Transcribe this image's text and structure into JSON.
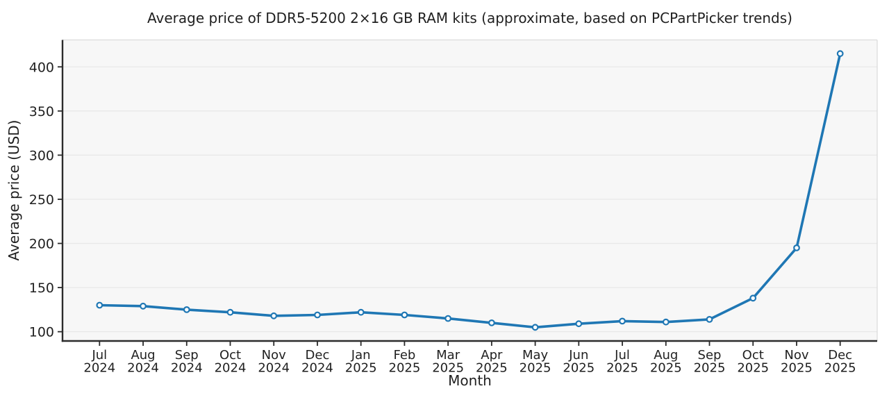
{
  "chart_data": {
    "type": "line",
    "title": "Average price of DDR5-5200 2×16 GB RAM kits (approximate, based on PCPartPicker trends)",
    "xlabel": "Month",
    "ylabel": "Average price (USD)",
    "categories": [
      "Jul 2024",
      "Aug 2024",
      "Sep 2024",
      "Oct 2024",
      "Nov 2024",
      "Dec 2024",
      "Jan 2025",
      "Feb 2025",
      "Mar 2025",
      "Apr 2025",
      "May 2025",
      "Jun 2025",
      "Jul 2025",
      "Aug 2025",
      "Sep 2025",
      "Oct 2025",
      "Nov 2025",
      "Dec 2025"
    ],
    "values": [
      130,
      129,
      125,
      122,
      118,
      119,
      122,
      119,
      115,
      110,
      105,
      109,
      112,
      111,
      114,
      138,
      195,
      415
    ],
    "yticks": [
      100,
      150,
      200,
      250,
      300,
      350,
      400
    ],
    "ylim": [
      89.5,
      430.5
    ],
    "grid": true,
    "legend_position": "none",
    "line_color": "#1f77b4",
    "marker_fill": "#ffffff",
    "marker_edge": "#1f77b4",
    "plot_bg_color": "#f7f7f7",
    "grid_color": "#e8e8e8",
    "spine_color": "#2b2b2b",
    "light_spine_color": "#dcdcdc",
    "text_color": "#1f1f1f"
  }
}
